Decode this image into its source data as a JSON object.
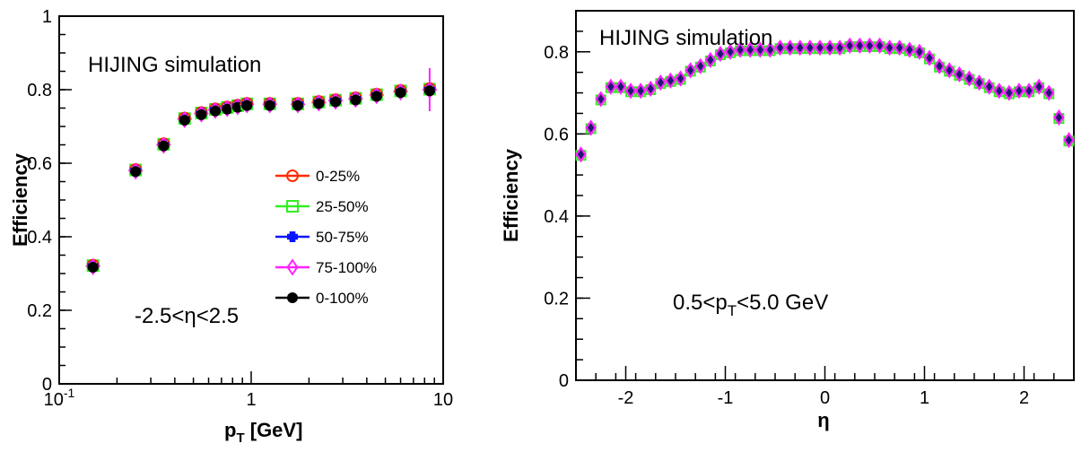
{
  "chart_data": [
    {
      "type": "scatter",
      "x_scale": "log",
      "xlim": [
        0.1,
        10
      ],
      "ylim": [
        0,
        1
      ],
      "xlabel_main": "p",
      "xlabel_sub": "T",
      "xlabel_unit": " [GeV]",
      "ylabel": "Efficiency",
      "xticks": [
        {
          "v": 0.1,
          "base": "10",
          "exp": "-1"
        },
        {
          "v": 1,
          "base": "1",
          "exp": ""
        },
        {
          "v": 10,
          "base": "10",
          "exp": ""
        }
      ],
      "yticks": [
        "0",
        "0.2",
        "0.4",
        "0.6",
        "0.8",
        "1"
      ],
      "yticks_values": [
        0,
        0.2,
        0.4,
        0.6,
        0.8,
        1
      ],
      "annotations": {
        "top": "HIJING simulation",
        "cut": "-2.5<η<2.5"
      },
      "legend_position": "right-center",
      "series": [
        {
          "name": "0-25%",
          "color": "#ff2a00",
          "marker": "open-circle"
        },
        {
          "name": "25-50%",
          "color": "#33ee22",
          "marker": "open-square"
        },
        {
          "name": "50-75%",
          "color": "#0a14ff",
          "marker": "filled-cross"
        },
        {
          "name": "75-100%",
          "color": "#ff22ff",
          "marker": "open-diamond"
        },
        {
          "name": "0-100%",
          "color": "#000000",
          "marker": "filled-circle"
        }
      ],
      "x": [
        0.15,
        0.25,
        0.35,
        0.45,
        0.55,
        0.65,
        0.75,
        0.85,
        0.95,
        1.25,
        1.75,
        2.25,
        2.75,
        3.5,
        4.5,
        6.0,
        8.5
      ],
      "y": [
        0.32,
        0.58,
        0.65,
        0.72,
        0.735,
        0.745,
        0.75,
        0.755,
        0.76,
        0.76,
        0.76,
        0.765,
        0.77,
        0.775,
        0.785,
        0.795,
        0.8
      ]
    },
    {
      "type": "scatter",
      "xlim": [
        -2.5,
        2.5
      ],
      "ylim": [
        0,
        0.9
      ],
      "xlabel": "η",
      "ylabel": "Efficiency",
      "xticks": [
        "-2",
        "-1",
        "0",
        "1",
        "2"
      ],
      "xticks_values": [
        -2,
        -1,
        0,
        1,
        2
      ],
      "yticks": [
        "0",
        "0.2",
        "0.4",
        "0.6",
        "0.8"
      ],
      "yticks_values": [
        0,
        0.2,
        0.4,
        0.6,
        0.8
      ],
      "annotations": {
        "top": "HIJING simulation",
        "cut_pre": "0.5<p",
        "cut_sub": "T",
        "cut_post": "<5.0 GeV"
      },
      "series_colors": [
        "#33ee22",
        "#ff22ff",
        "#1a1a6e"
      ],
      "x": [
        -2.45,
        -2.35,
        -2.25,
        -2.15,
        -2.05,
        -1.95,
        -1.85,
        -1.75,
        -1.65,
        -1.55,
        -1.45,
        -1.35,
        -1.25,
        -1.15,
        -1.05,
        -0.95,
        -0.85,
        -0.75,
        -0.65,
        -0.55,
        -0.45,
        -0.35,
        -0.25,
        -0.15,
        -0.05,
        0.05,
        0.15,
        0.25,
        0.35,
        0.45,
        0.55,
        0.65,
        0.75,
        0.85,
        0.95,
        1.05,
        1.15,
        1.25,
        1.35,
        1.45,
        1.55,
        1.65,
        1.75,
        1.85,
        1.95,
        2.05,
        2.15,
        2.25,
        2.35,
        2.45
      ],
      "y": [
        0.55,
        0.615,
        0.685,
        0.715,
        0.715,
        0.705,
        0.705,
        0.71,
        0.725,
        0.73,
        0.735,
        0.755,
        0.765,
        0.78,
        0.795,
        0.8,
        0.805,
        0.805,
        0.805,
        0.805,
        0.81,
        0.81,
        0.81,
        0.81,
        0.81,
        0.81,
        0.81,
        0.815,
        0.815,
        0.815,
        0.815,
        0.81,
        0.81,
        0.805,
        0.8,
        0.785,
        0.765,
        0.755,
        0.745,
        0.735,
        0.725,
        0.715,
        0.705,
        0.7,
        0.705,
        0.705,
        0.715,
        0.7,
        0.64,
        0.585
      ]
    }
  ]
}
